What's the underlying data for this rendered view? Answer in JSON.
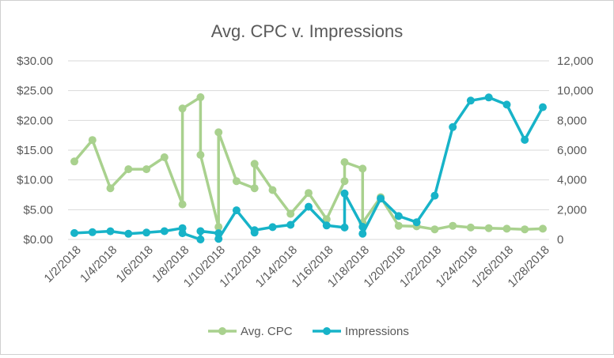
{
  "chart_data": {
    "type": "line",
    "title": "Avg. CPC v. Impressions",
    "x_labels": [
      "1/2/2018",
      "1/4/2018",
      "1/6/2018",
      "1/8/2018",
      "1/10/2018",
      "1/12/2018",
      "1/14/2018",
      "1/16/2018",
      "1/18/2018",
      "1/20/2018",
      "1/22/2018",
      "1/24/2018",
      "1/26/2018",
      "1/28/2018"
    ],
    "x_range": [
      "1/2/2018",
      "1/28/2018"
    ],
    "y_left": {
      "range": [
        0,
        30
      ],
      "ticks": [
        0,
        5,
        10,
        15,
        20,
        25,
        30
      ],
      "tick_labels": [
        "$0.00",
        "$5.00",
        "$10.00",
        "$15.00",
        "$20.00",
        "$25.00",
        "$30.00"
      ]
    },
    "y_right": {
      "range": [
        0,
        12000
      ],
      "ticks": [
        0,
        2000,
        4000,
        6000,
        8000,
        10000,
        12000
      ],
      "tick_labels": [
        "0",
        "2,000",
        "4,000",
        "6,000",
        "8,000",
        "10,000",
        "12,000"
      ]
    },
    "gridlines": true,
    "legend_position": "bottom",
    "series": [
      {
        "name": "Avg. CPC",
        "axis": "left",
        "color": "#a9d18e",
        "points": [
          [
            "1/2/2018",
            13.1
          ],
          [
            "1/3/2018",
            16.7
          ],
          [
            "1/4/2018",
            8.6
          ],
          [
            "1/5/2018",
            11.8
          ],
          [
            "1/6/2018",
            11.8
          ],
          [
            "1/7/2018",
            13.8
          ],
          [
            "1/8/2018",
            5.9
          ],
          [
            "1/8/2018",
            22.0
          ],
          [
            "1/9/2018",
            23.9
          ],
          [
            "1/9/2018",
            14.2
          ],
          [
            "1/10/2018",
            2.1
          ],
          [
            "1/10/2018",
            18.0
          ],
          [
            "1/11/2018",
            9.8
          ],
          [
            "1/12/2018",
            8.6
          ],
          [
            "1/12/2018",
            12.7
          ],
          [
            "1/13/2018",
            8.3
          ],
          [
            "1/14/2018",
            4.3
          ],
          [
            "1/15/2018",
            7.8
          ],
          [
            "1/16/2018",
            3.4
          ],
          [
            "1/17/2018",
            9.8
          ],
          [
            "1/17/2018",
            13.0
          ],
          [
            "1/18/2018",
            11.9
          ],
          [
            "1/18/2018",
            2.8
          ],
          [
            "1/19/2018",
            7.1
          ],
          [
            "1/20/2018",
            2.3
          ],
          [
            "1/21/2018",
            2.2
          ],
          [
            "1/22/2018",
            1.7
          ],
          [
            "1/23/2018",
            2.3
          ],
          [
            "1/24/2018",
            2.0
          ],
          [
            "1/25/2018",
            1.9
          ],
          [
            "1/26/2018",
            1.8
          ],
          [
            "1/27/2018",
            1.7
          ],
          [
            "1/28/2018",
            1.8
          ]
        ]
      },
      {
        "name": "Impressions",
        "axis": "right",
        "color": "#17b3c8",
        "points": [
          [
            "1/2/2018",
            430
          ],
          [
            "1/3/2018",
            490
          ],
          [
            "1/4/2018",
            550
          ],
          [
            "1/5/2018",
            380
          ],
          [
            "1/6/2018",
            460
          ],
          [
            "1/7/2018",
            560
          ],
          [
            "1/8/2018",
            760
          ],
          [
            "1/8/2018",
            420
          ],
          [
            "1/9/2018",
            0
          ],
          [
            "1/9/2018",
            560
          ],
          [
            "1/10/2018",
            420
          ],
          [
            "1/10/2018",
            40
          ],
          [
            "1/11/2018",
            1960
          ],
          [
            "1/12/2018",
            460
          ],
          [
            "1/12/2018",
            620
          ],
          [
            "1/13/2018",
            830
          ],
          [
            "1/14/2018",
            980
          ],
          [
            "1/15/2018",
            2200
          ],
          [
            "1/16/2018",
            940
          ],
          [
            "1/17/2018",
            800
          ],
          [
            "1/17/2018",
            3090
          ],
          [
            "1/18/2018",
            850
          ],
          [
            "1/18/2018",
            390
          ],
          [
            "1/19/2018",
            2750
          ],
          [
            "1/20/2018",
            1570
          ],
          [
            "1/21/2018",
            1160
          ],
          [
            "1/22/2018",
            2940
          ],
          [
            "1/23/2018",
            7550
          ],
          [
            "1/24/2018",
            9330
          ],
          [
            "1/25/2018",
            9540
          ],
          [
            "1/26/2018",
            9060
          ],
          [
            "1/27/2018",
            6690
          ],
          [
            "1/28/2018",
            8890
          ]
        ]
      }
    ]
  }
}
